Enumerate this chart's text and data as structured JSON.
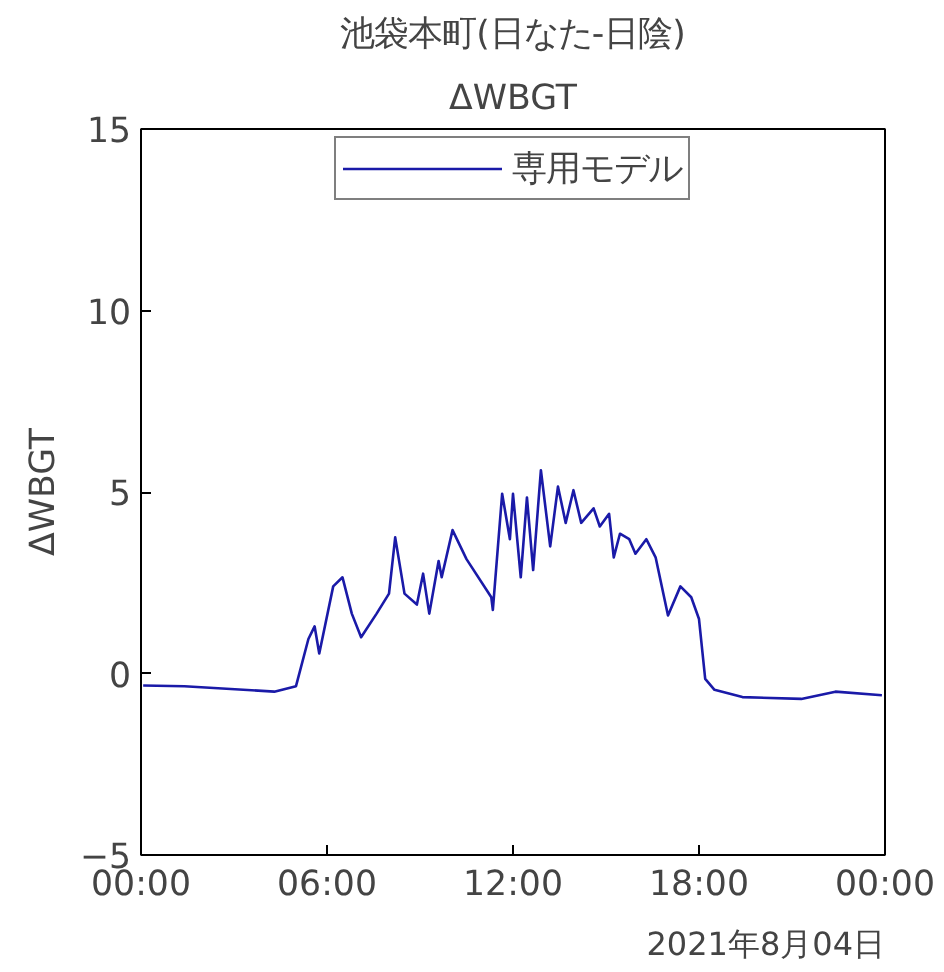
{
  "chart_data": {
    "type": "line",
    "title": "池袋本町(日なた-日陰)",
    "subtitle": "ΔWBGT",
    "ylabel": "ΔWBGT",
    "annotations": [
      "2021年8月04日"
    ],
    "series": [
      {
        "name": "専用モデル",
        "color": "#1a1aa8",
        "x": [
          0.07,
          1.4,
          4.3,
          5.0,
          5.4,
          5.6,
          5.75,
          6.2,
          6.5,
          6.8,
          7.1,
          7.6,
          8.0,
          8.2,
          8.5,
          8.9,
          9.1,
          9.3,
          9.6,
          9.7,
          10.05,
          10.5,
          11.3,
          11.35,
          11.65,
          11.9,
          12.0,
          12.25,
          12.45,
          12.65,
          12.9,
          13.2,
          13.45,
          13.7,
          13.95,
          14.2,
          14.6,
          14.8,
          15.1,
          15.25,
          15.45,
          15.75,
          15.95,
          16.3,
          16.6,
          17.0,
          17.4,
          17.75,
          18.0,
          18.2,
          18.5,
          19.4,
          21.3,
          22.4,
          23.9
        ],
        "values": [
          -0.33,
          -0.35,
          -0.5,
          -0.35,
          0.95,
          1.3,
          0.55,
          2.4,
          2.65,
          1.65,
          1.0,
          1.65,
          2.2,
          3.75,
          2.2,
          1.9,
          2.75,
          1.65,
          3.1,
          2.65,
          3.95,
          3.15,
          2.1,
          1.75,
          4.95,
          3.7,
          4.95,
          2.65,
          4.85,
          2.85,
          5.6,
          3.5,
          5.15,
          4.15,
          5.05,
          4.15,
          4.55,
          4.05,
          4.4,
          3.2,
          3.85,
          3.7,
          3.3,
          3.7,
          3.2,
          1.6,
          2.4,
          2.1,
          1.5,
          -0.15,
          -0.45,
          -0.65,
          -0.7,
          -0.5,
          -0.6
        ]
      }
    ],
    "xlim": [
      0,
      24
    ],
    "xticks": [
      {
        "value": 0,
        "label": "00:00"
      },
      {
        "value": 6,
        "label": "06:00"
      },
      {
        "value": 12,
        "label": "12:00"
      },
      {
        "value": 18,
        "label": "18:00"
      },
      {
        "value": 24,
        "label": "00:00"
      }
    ],
    "ylim": [
      -5,
      15
    ],
    "yticks": [
      -5,
      0,
      5,
      10,
      15
    ],
    "legend": "top",
    "grid": false,
    "line_style": "solid",
    "marker": "none"
  }
}
